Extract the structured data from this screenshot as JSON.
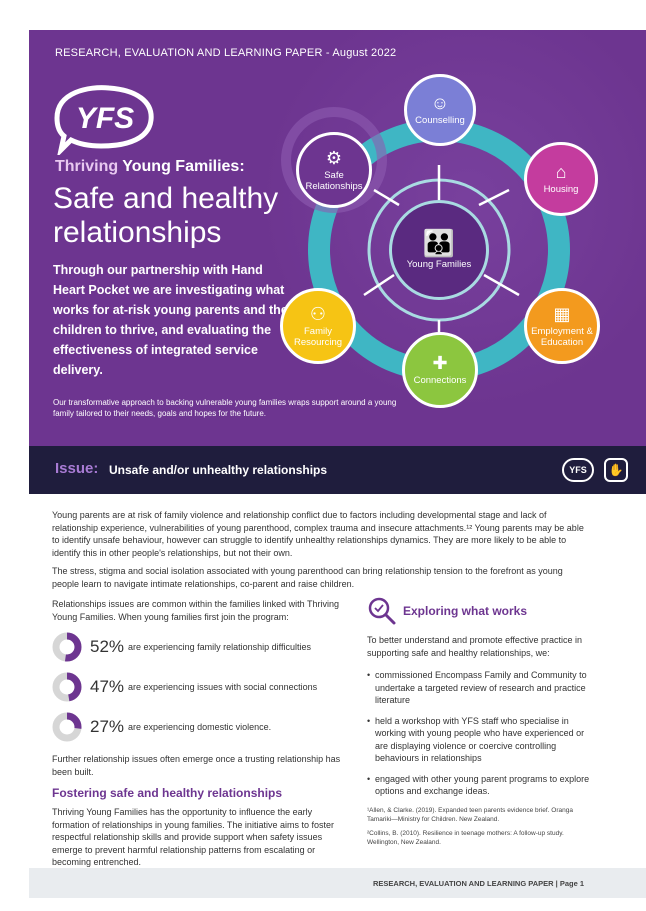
{
  "header": {
    "topline": "RESEARCH, EVALUATION AND LEARNING PAPER - August 2022",
    "logo_text": "YFS",
    "subtitle_part1": "Thriving",
    "subtitle_part2": " Young Families:",
    "title": "Safe and healthy relationships",
    "intro": "Through our partnership with Hand Heart Pocket we are investigating what works for at-risk young parents and their children to thrive, and evaluating the effectiveness of integrated service delivery.",
    "small_intro": "Our transformative approach to backing vulnerable young families wraps support around a young family tailored to their needs, goals and hopes for the future."
  },
  "diagram": {
    "center": "Young Families",
    "nodes": [
      {
        "label": "Counselling",
        "icon": "people-talk-icon",
        "color": "#7b7fd6"
      },
      {
        "label": "Housing",
        "icon": "house-icon",
        "color": "#c43c9e"
      },
      {
        "label": "Employment & Education",
        "icon": "presenter-icon",
        "color": "#f39a1e"
      },
      {
        "label": "Connections",
        "icon": "puzzle-icon",
        "color": "#8cc63f"
      },
      {
        "label": "Family Resourcing",
        "icon": "family-icon",
        "color": "#f6c414"
      },
      {
        "label": "Safe Relationships",
        "icon": "gear-icon",
        "color": "#6d3590"
      }
    ]
  },
  "issue": {
    "label": "Issue:",
    "text": "Unsafe and/or unhealthy relationships",
    "logo_text": "YFS"
  },
  "body": {
    "p1": "Young parents are at risk of family violence and relationship conflict due to factors including developmental stage and lack of relationship experience, vulnerabilities of young parenthood, complex trauma and insecure attachments.¹² Young parents may be able to identify unsafe behaviour, however can struggle to identify unhealthy relationships dynamics. They are more likely to be able to identify this in other people's relationships, but not their own.",
    "p2": "The stress, stigma and social isolation associated with young parenthood can bring relationship tension to the forefront as young people learn to navigate intimate relationships, co-parent and raise children.",
    "stats_intro": "Relationships issues are common within the families linked with Thriving Young Families. When young families first join the program:",
    "stats": [
      {
        "pct": "52%",
        "value": 52,
        "desc": "are experiencing family relationship difficulties"
      },
      {
        "pct": "47%",
        "value": 47,
        "desc": "are experiencing issues with social connections"
      },
      {
        "pct": "27%",
        "value": 27,
        "desc": "are experiencing domestic violence."
      }
    ],
    "after_stats": "Further relationship issues often emerge once a trusting relationship has been built.",
    "foster_heading": "Fostering safe and healthy relationships",
    "foster_text": "Thriving Young Families has the opportunity to influence the early formation of relationships in young families. The initiative aims to foster respectful relationship skills and provide support when safety issues emerge to prevent harmful relationship patterns from escalating or becoming entrenched.",
    "exploring_heading": "Exploring what works",
    "exploring_intro": "To better understand and promote effective practice in supporting safe and healthy relationships, we:",
    "bullets": [
      "commissioned Encompass Family and Community to undertake a targeted review of research and practice literature",
      "held a workshop with YFS staff who specialise in working with young people who have experienced or are displaying violence or coercive controlling behaviours in relationships",
      "engaged with other young parent programs to explore options and exchange ideas."
    ],
    "ref1": "¹Allen, & Clarke. (2019). Expanded teen parents evidence brief. Oranga Tamariki—Ministry for Children. New Zealand.",
    "ref2": "²Collins, B. (2010). Resilience in teenage mothers: A follow-up study. Wellington, New Zealand."
  },
  "footer": {
    "text": "RESEARCH, EVALUATION AND LEARNING PAPER | Page 1"
  }
}
